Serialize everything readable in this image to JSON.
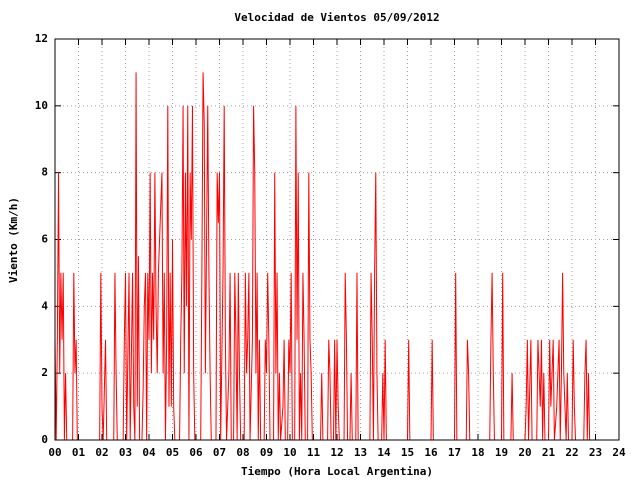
{
  "chart_data": {
    "type": "line",
    "title": "Velocidad de Vientos 05/09/2012",
    "x_label": "Tiempo (Hora Local Argentina)",
    "y_label": "Viento (Km/h)",
    "color": "#ff0000",
    "grid": true,
    "xlim": [
      0,
      24
    ],
    "ylim": [
      0,
      12
    ],
    "xticks": [
      {
        "value": 0,
        "label": "00"
      },
      {
        "value": 1,
        "label": "01"
      },
      {
        "value": 2,
        "label": "02"
      },
      {
        "value": 3,
        "label": "03"
      },
      {
        "value": 4,
        "label": "04"
      },
      {
        "value": 5,
        "label": "05"
      },
      {
        "value": 6,
        "label": "06"
      },
      {
        "value": 7,
        "label": "07"
      },
      {
        "value": 8,
        "label": "08"
      },
      {
        "value": 9,
        "label": "09"
      },
      10,
      11,
      12,
      13,
      14,
      15,
      16,
      17,
      18,
      19,
      20,
      21,
      22,
      23,
      24
    ],
    "yticks": [
      0,
      2,
      4,
      6,
      8,
      10,
      12
    ],
    "x": [
      0,
      0.05,
      0.1,
      0.15,
      0.2,
      0.25,
      0.3,
      0.35,
      0.4,
      0.45,
      0.5,
      0.55,
      0.75,
      0.8,
      0.85,
      0.9,
      0.95,
      1.9,
      1.95,
      2.0,
      2.05,
      2.15,
      2.2,
      2.5,
      2.55,
      2.6,
      2.65,
      2.9,
      2.95,
      3.0,
      3.05,
      3.15,
      3.2,
      3.3,
      3.35,
      3.4,
      3.45,
      3.5,
      3.55,
      3.6,
      3.7,
      3.75,
      3.8,
      3.85,
      3.9,
      3.95,
      4.0,
      4.05,
      4.1,
      4.15,
      4.2,
      4.25,
      4.3,
      4.35,
      4.4,
      4.45,
      4.5,
      4.55,
      4.6,
      4.65,
      4.7,
      4.75,
      4.8,
      4.85,
      4.9,
      4.95,
      5.0,
      5.05,
      5.1,
      5.3,
      5.35,
      5.4,
      5.45,
      5.5,
      5.55,
      5.6,
      5.65,
      5.7,
      5.75,
      5.8,
      5.85,
      5.9,
      5.95,
      6.2,
      6.25,
      6.3,
      6.35,
      6.4,
      6.45,
      6.5,
      6.55,
      6.6,
      6.65,
      6.85,
      6.9,
      6.95,
      7.0,
      7.05,
      7.15,
      7.2,
      7.25,
      7.3,
      7.4,
      7.45,
      7.5,
      7.6,
      7.65,
      7.7,
      7.75,
      7.8,
      7.85,
      7.9,
      8.05,
      8.1,
      8.15,
      8.2,
      8.25,
      8.3,
      8.4,
      8.45,
      8.5,
      8.55,
      8.6,
      8.65,
      8.7,
      8.75,
      8.9,
      8.95,
      9.0,
      9.05,
      9.1,
      9.15,
      9.3,
      9.35,
      9.4,
      9.45,
      9.5,
      9.55,
      9.6,
      9.7,
      9.75,
      9.8,
      9.9,
      9.95,
      10.0,
      10.05,
      10.1,
      10.2,
      10.25,
      10.3,
      10.35,
      10.4,
      10.45,
      10.5,
      10.55,
      10.6,
      10.65,
      10.75,
      10.8,
      10.85,
      10.9,
      10.95,
      11.3,
      11.35,
      11.4,
      11.6,
      11.65,
      11.7,
      11.75,
      11.85,
      11.9,
      11.95,
      12.0,
      12.05,
      12.1,
      12.3,
      12.35,
      12.4,
      12.45,
      12.55,
      12.6,
      12.65,
      12.8,
      12.85,
      12.9,
      13.4,
      13.45,
      13.5,
      13.55,
      13.6,
      13.65,
      13.7,
      13.75,
      13.9,
      13.95,
      14.0,
      14.05,
      14.1,
      15.0,
      15.05,
      15.1,
      16.0,
      16.05,
      16.1,
      17.0,
      17.05,
      17.1,
      17.5,
      17.55,
      17.6,
      17.65,
      18.5,
      18.55,
      18.6,
      18.65,
      18.7,
      19.0,
      19.05,
      19.1,
      19.4,
      19.45,
      19.5,
      20.0,
      20.05,
      20.1,
      20.15,
      20.25,
      20.3,
      20.5,
      20.55,
      20.6,
      20.65,
      20.7,
      20.75,
      20.8,
      20.85,
      21.0,
      21.05,
      21.1,
      21.15,
      21.2,
      21.25,
      21.35,
      21.4,
      21.45,
      21.5,
      21.55,
      21.6,
      21.65,
      21.7,
      21.75,
      21.8,
      21.85,
      22.0,
      22.05,
      22.1,
      22.15,
      22.5,
      22.55,
      22.6,
      22.65,
      22.7,
      22.75,
      23.5
    ],
    "values": [
      3,
      0,
      3,
      8,
      2,
      5,
      3,
      5,
      0,
      2,
      0,
      0,
      0,
      5,
      2,
      3,
      0,
      0,
      5,
      1,
      0,
      3,
      0,
      0,
      5,
      2,
      0,
      0,
      3,
      5,
      0,
      5,
      0,
      5,
      1,
      0,
      11,
      1,
      5.5,
      0,
      0,
      1.5,
      4,
      5,
      0,
      5,
      3,
      8,
      2,
      5,
      3,
      8,
      4,
      2,
      5,
      6,
      7,
      8,
      2,
      5,
      0,
      3,
      10,
      1,
      5,
      1,
      6,
      1,
      0,
      0,
      3,
      5,
      10,
      2,
      8,
      4,
      10,
      0,
      8,
      6,
      10,
      2,
      0,
      0,
      5,
      11,
      9.5,
      2,
      6,
      10,
      5,
      2,
      0,
      0,
      8,
      6.5,
      8,
      0,
      5,
      10,
      3,
      0,
      2,
      5,
      0,
      0,
      5,
      3,
      0,
      5,
      2,
      0,
      0,
      5,
      2,
      3,
      5,
      0,
      3,
      10,
      8,
      2,
      5,
      0,
      3,
      0,
      0,
      3,
      2,
      5,
      3,
      0,
      0,
      8,
      2,
      5,
      0,
      2,
      0,
      1,
      3,
      0,
      0,
      3,
      2,
      5,
      0,
      0,
      10,
      3,
      8,
      0,
      2,
      0,
      5,
      3,
      0,
      0,
      8,
      3,
      2,
      0,
      0,
      2,
      0,
      0,
      3,
      2,
      0,
      0,
      3,
      0,
      3,
      1,
      0,
      0,
      5,
      3,
      0,
      0,
      2,
      0,
      0,
      5,
      0,
      0,
      5,
      3,
      0,
      5,
      8,
      2,
      0,
      0,
      2,
      0,
      3,
      0,
      0,
      3,
      0,
      0,
      3,
      0,
      0,
      5,
      0,
      0,
      3,
      2,
      0,
      0,
      3,
      5,
      2,
      0,
      0,
      5,
      0,
      0,
      2,
      0,
      0,
      1,
      3,
      0,
      3,
      0,
      0,
      3,
      2,
      1,
      3,
      0,
      2,
      0,
      0,
      3,
      1,
      2,
      3,
      0,
      1,
      2,
      3,
      0,
      2,
      5,
      2,
      1,
      0,
      2,
      0,
      0,
      3,
      1,
      0,
      0,
      2,
      3,
      0,
      2,
      0,
      0
    ]
  }
}
